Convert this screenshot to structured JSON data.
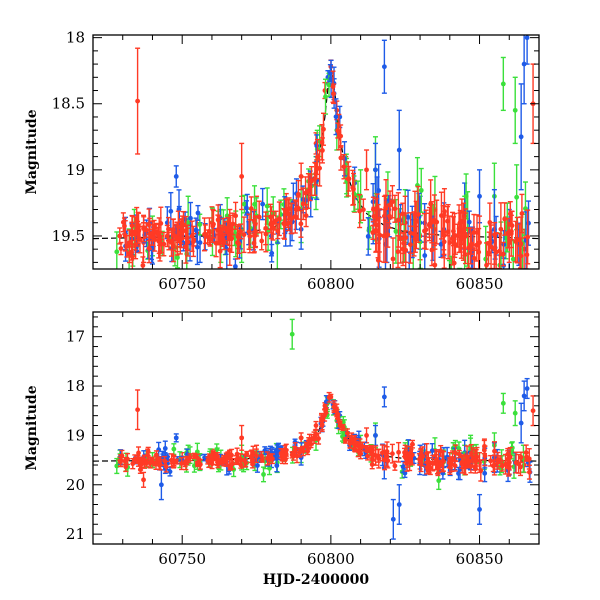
{
  "colors": {
    "red": "#ff3a25",
    "green": "#3be03b",
    "blue": "#1e5be8",
    "model": "#000000"
  },
  "chart_data": [
    {
      "type": "scatter",
      "xlabel": "",
      "ylabel": "Magnitude",
      "xlim": [
        60720,
        60870
      ],
      "ylim": [
        19.75,
        17.98
      ],
      "inverted_y": true,
      "xticks": [
        "60750",
        "60800",
        "60850"
      ],
      "yticks": [
        "18",
        "18.5",
        "19",
        "19.5"
      ],
      "grid": false,
      "series": [
        {
          "color": "red",
          "points": [
            [
              60729,
              19.5,
              0.06
            ],
            [
              60735,
              18.48,
              0.4
            ],
            [
              60737,
              19.55,
              0.15
            ],
            [
              60745,
              19.5,
              0.08
            ],
            [
              60750,
              19.45,
              0.1
            ],
            [
              60755,
              19.48,
              0.1
            ],
            [
              60760,
              19.4,
              0.12
            ],
            [
              60766,
              19.45,
              0.15
            ],
            [
              60770,
              19.05,
              0.25
            ],
            [
              60775,
              19.35,
              0.15
            ],
            [
              60780,
              19.4,
              0.12
            ],
            [
              60785,
              19.3,
              0.12
            ],
            [
              60790,
              19.05,
              0.1
            ],
            [
              60795,
              18.8,
              0.08
            ],
            [
              60798,
              18.4,
              0.06
            ],
            [
              60800,
              18.22,
              0.05
            ],
            [
              60802,
              18.55,
              0.07
            ],
            [
              60805,
              19.0,
              0.1
            ],
            [
              60808,
              19.2,
              0.12
            ],
            [
              60812,
              19.0,
              0.15
            ],
            [
              60818,
              19.35,
              0.15
            ],
            [
              60825,
              19.4,
              0.2
            ],
            [
              60830,
              19.5,
              0.18
            ],
            [
              60835,
              19.45,
              0.15
            ],
            [
              60840,
              19.55,
              0.2
            ],
            [
              60845,
              19.5,
              0.15
            ],
            [
              60850,
              19.55,
              0.2
            ],
            [
              60855,
              19.6,
              0.2
            ],
            [
              60860,
              19.55,
              0.15
            ],
            [
              60865,
              19.6,
              0.15
            ],
            [
              60868,
              18.5,
              0.3
            ]
          ]
        },
        {
          "color": "green",
          "points": [
            [
              60728,
              19.62,
              0.15
            ],
            [
              60740,
              19.5,
              0.15
            ],
            [
              60752,
              19.4,
              0.2
            ],
            [
              60763,
              19.5,
              0.2
            ],
            [
              60770,
              19.45,
              0.25
            ],
            [
              60782,
              19.55,
              0.2
            ],
            [
              60790,
              19.3,
              0.25
            ],
            [
              60795,
              19.1,
              0.2
            ],
            [
              60802,
              18.7,
              0.15
            ],
            [
              60810,
              19.2,
              0.2
            ],
            [
              60815,
              19.0,
              0.25
            ],
            [
              60825,
              19.35,
              0.2
            ],
            [
              60835,
              19.3,
              0.25
            ],
            [
              60845,
              19.5,
              0.3
            ],
            [
              60855,
              19.2,
              0.25
            ],
            [
              60858,
              18.35,
              0.2
            ],
            [
              60862,
              18.55,
              0.25
            ]
          ]
        },
        {
          "color": "blue",
          "points": [
            [
              60738,
              19.48,
              0.1
            ],
            [
              60745,
              19.4,
              0.12
            ],
            [
              60748,
              19.05,
              0.08
            ],
            [
              60756,
              19.55,
              0.15
            ],
            [
              60765,
              19.6,
              0.2
            ],
            [
              60780,
              19.5,
              0.15
            ],
            [
              60790,
              19.45,
              0.15
            ],
            [
              60799,
              18.3,
              0.05
            ],
            [
              60803,
              18.6,
              0.08
            ],
            [
              60808,
              19.1,
              0.12
            ],
            [
              60815,
              19.0,
              0.2
            ],
            [
              60818,
              18.22,
              0.2
            ],
            [
              60823,
              18.85,
              0.3
            ],
            [
              60830,
              19.4,
              0.2
            ],
            [
              60838,
              19.45,
              0.2
            ],
            [
              60845,
              19.35,
              0.25
            ],
            [
              60850,
              19.2,
              0.2
            ],
            [
              60855,
              19.45,
              0.3
            ],
            [
              60860,
              19.55,
              0.25
            ],
            [
              60864,
              18.75,
              0.4
            ],
            [
              60865,
              18.2,
              0.3
            ],
            [
              60866,
              18.0,
              0.2
            ]
          ]
        }
      ],
      "model": [
        [
          60720,
          19.52
        ],
        [
          60740,
          19.51
        ],
        [
          60760,
          19.5
        ],
        [
          60770,
          19.48
        ],
        [
          60780,
          19.44
        ],
        [
          60785,
          19.39
        ],
        [
          60790,
          19.28
        ],
        [
          60793,
          19.15
        ],
        [
          60796,
          18.9
        ],
        [
          60798,
          18.6
        ],
        [
          60799,
          18.38
        ],
        [
          60800,
          18.22
        ],
        [
          60801,
          18.35
        ],
        [
          60803,
          18.75
        ],
        [
          60805,
          19.0
        ],
        [
          60808,
          19.2
        ],
        [
          60812,
          19.33
        ],
        [
          60818,
          19.42
        ],
        [
          60825,
          19.47
        ],
        [
          60840,
          19.5
        ],
        [
          60870,
          19.52
        ]
      ]
    },
    {
      "type": "scatter",
      "xlabel": "HJD-2400000",
      "ylabel": "Magnitude",
      "xlim": [
        60720,
        60870
      ],
      "ylim": [
        21.2,
        16.5
      ],
      "inverted_y": true,
      "xticks": [
        "60750",
        "60800",
        "60850"
      ],
      "yticks": [
        "17",
        "18",
        "19",
        "20",
        "21"
      ],
      "grid": false,
      "series": [
        {
          "color": "red",
          "points": [
            [
              60729,
              19.5,
              0.06
            ],
            [
              60735,
              18.48,
              0.4
            ],
            [
              60737,
              19.9,
              0.15
            ],
            [
              60745,
              19.5,
              0.08
            ],
            [
              60750,
              19.45,
              0.1
            ],
            [
              60755,
              19.48,
              0.1
            ],
            [
              60760,
              19.4,
              0.12
            ],
            [
              60766,
              19.45,
              0.15
            ],
            [
              60770,
              19.05,
              0.25
            ],
            [
              60775,
              19.35,
              0.15
            ],
            [
              60780,
              19.4,
              0.12
            ],
            [
              60785,
              19.3,
              0.12
            ],
            [
              60790,
              19.05,
              0.1
            ],
            [
              60795,
              18.8,
              0.08
            ],
            [
              60798,
              18.4,
              0.06
            ],
            [
              60800,
              18.22,
              0.05
            ],
            [
              60802,
              18.55,
              0.07
            ],
            [
              60805,
              19.0,
              0.1
            ],
            [
              60808,
              19.2,
              0.12
            ],
            [
              60812,
              19.0,
              0.15
            ],
            [
              60818,
              19.35,
              0.15
            ],
            [
              60825,
              19.4,
              0.2
            ],
            [
              60830,
              19.5,
              0.18
            ],
            [
              60835,
              19.45,
              0.15
            ],
            [
              60840,
              19.55,
              0.2
            ],
            [
              60845,
              19.5,
              0.15
            ],
            [
              60850,
              19.55,
              0.2
            ],
            [
              60855,
              19.6,
              0.2
            ],
            [
              60860,
              19.55,
              0.15
            ],
            [
              60865,
              19.6,
              0.15
            ],
            [
              60868,
              18.5,
              0.3
            ]
          ]
        },
        {
          "color": "green",
          "points": [
            [
              60728,
              19.62,
              0.15
            ],
            [
              60740,
              19.5,
              0.15
            ],
            [
              60752,
              19.4,
              0.2
            ],
            [
              60763,
              19.5,
              0.2
            ],
            [
              60770,
              19.45,
              0.25
            ],
            [
              60782,
              19.55,
              0.2
            ],
            [
              60787,
              16.95,
              0.3
            ],
            [
              60790,
              19.3,
              0.25
            ],
            [
              60795,
              19.1,
              0.2
            ],
            [
              60802,
              18.7,
              0.15
            ],
            [
              60810,
              19.2,
              0.2
            ],
            [
              60815,
              19.0,
              0.25
            ],
            [
              60825,
              19.35,
              0.2
            ],
            [
              60835,
              19.3,
              0.25
            ],
            [
              60845,
              19.5,
              0.3
            ],
            [
              60855,
              19.2,
              0.25
            ],
            [
              60858,
              18.35,
              0.2
            ],
            [
              60862,
              18.55,
              0.25
            ]
          ]
        },
        {
          "color": "blue",
          "points": [
            [
              60738,
              19.48,
              0.1
            ],
            [
              60743,
              20.0,
              0.3
            ],
            [
              60748,
              19.05,
              0.08
            ],
            [
              60756,
              19.55,
              0.15
            ],
            [
              60765,
              19.6,
              0.2
            ],
            [
              60780,
              19.5,
              0.15
            ],
            [
              60790,
              19.45,
              0.15
            ],
            [
              60799,
              18.3,
              0.05
            ],
            [
              60803,
              18.6,
              0.08
            ],
            [
              60808,
              19.1,
              0.12
            ],
            [
              60815,
              19.0,
              0.2
            ],
            [
              60818,
              18.22,
              0.2
            ],
            [
              60821,
              20.7,
              0.4
            ],
            [
              60823,
              20.4,
              0.4
            ],
            [
              60830,
              19.4,
              0.2
            ],
            [
              60838,
              19.45,
              0.2
            ],
            [
              60845,
              19.35,
              0.25
            ],
            [
              60850,
              20.5,
              0.3
            ],
            [
              60855,
              19.45,
              0.3
            ],
            [
              60860,
              19.55,
              0.25
            ],
            [
              60864,
              18.75,
              0.4
            ],
            [
              60865,
              18.2,
              0.3
            ],
            [
              60866,
              18.05,
              0.2
            ]
          ]
        }
      ],
      "model": [
        [
          60720,
          19.52
        ],
        [
          60740,
          19.51
        ],
        [
          60760,
          19.5
        ],
        [
          60770,
          19.48
        ],
        [
          60780,
          19.44
        ],
        [
          60785,
          19.39
        ],
        [
          60790,
          19.28
        ],
        [
          60793,
          19.15
        ],
        [
          60796,
          18.9
        ],
        [
          60798,
          18.6
        ],
        [
          60799,
          18.38
        ],
        [
          60800,
          18.22
        ],
        [
          60801,
          18.35
        ],
        [
          60803,
          18.75
        ],
        [
          60805,
          19.0
        ],
        [
          60808,
          19.2
        ],
        [
          60812,
          19.33
        ],
        [
          60818,
          19.42
        ],
        [
          60825,
          19.47
        ],
        [
          60840,
          19.5
        ],
        [
          60870,
          19.52
        ]
      ]
    }
  ]
}
